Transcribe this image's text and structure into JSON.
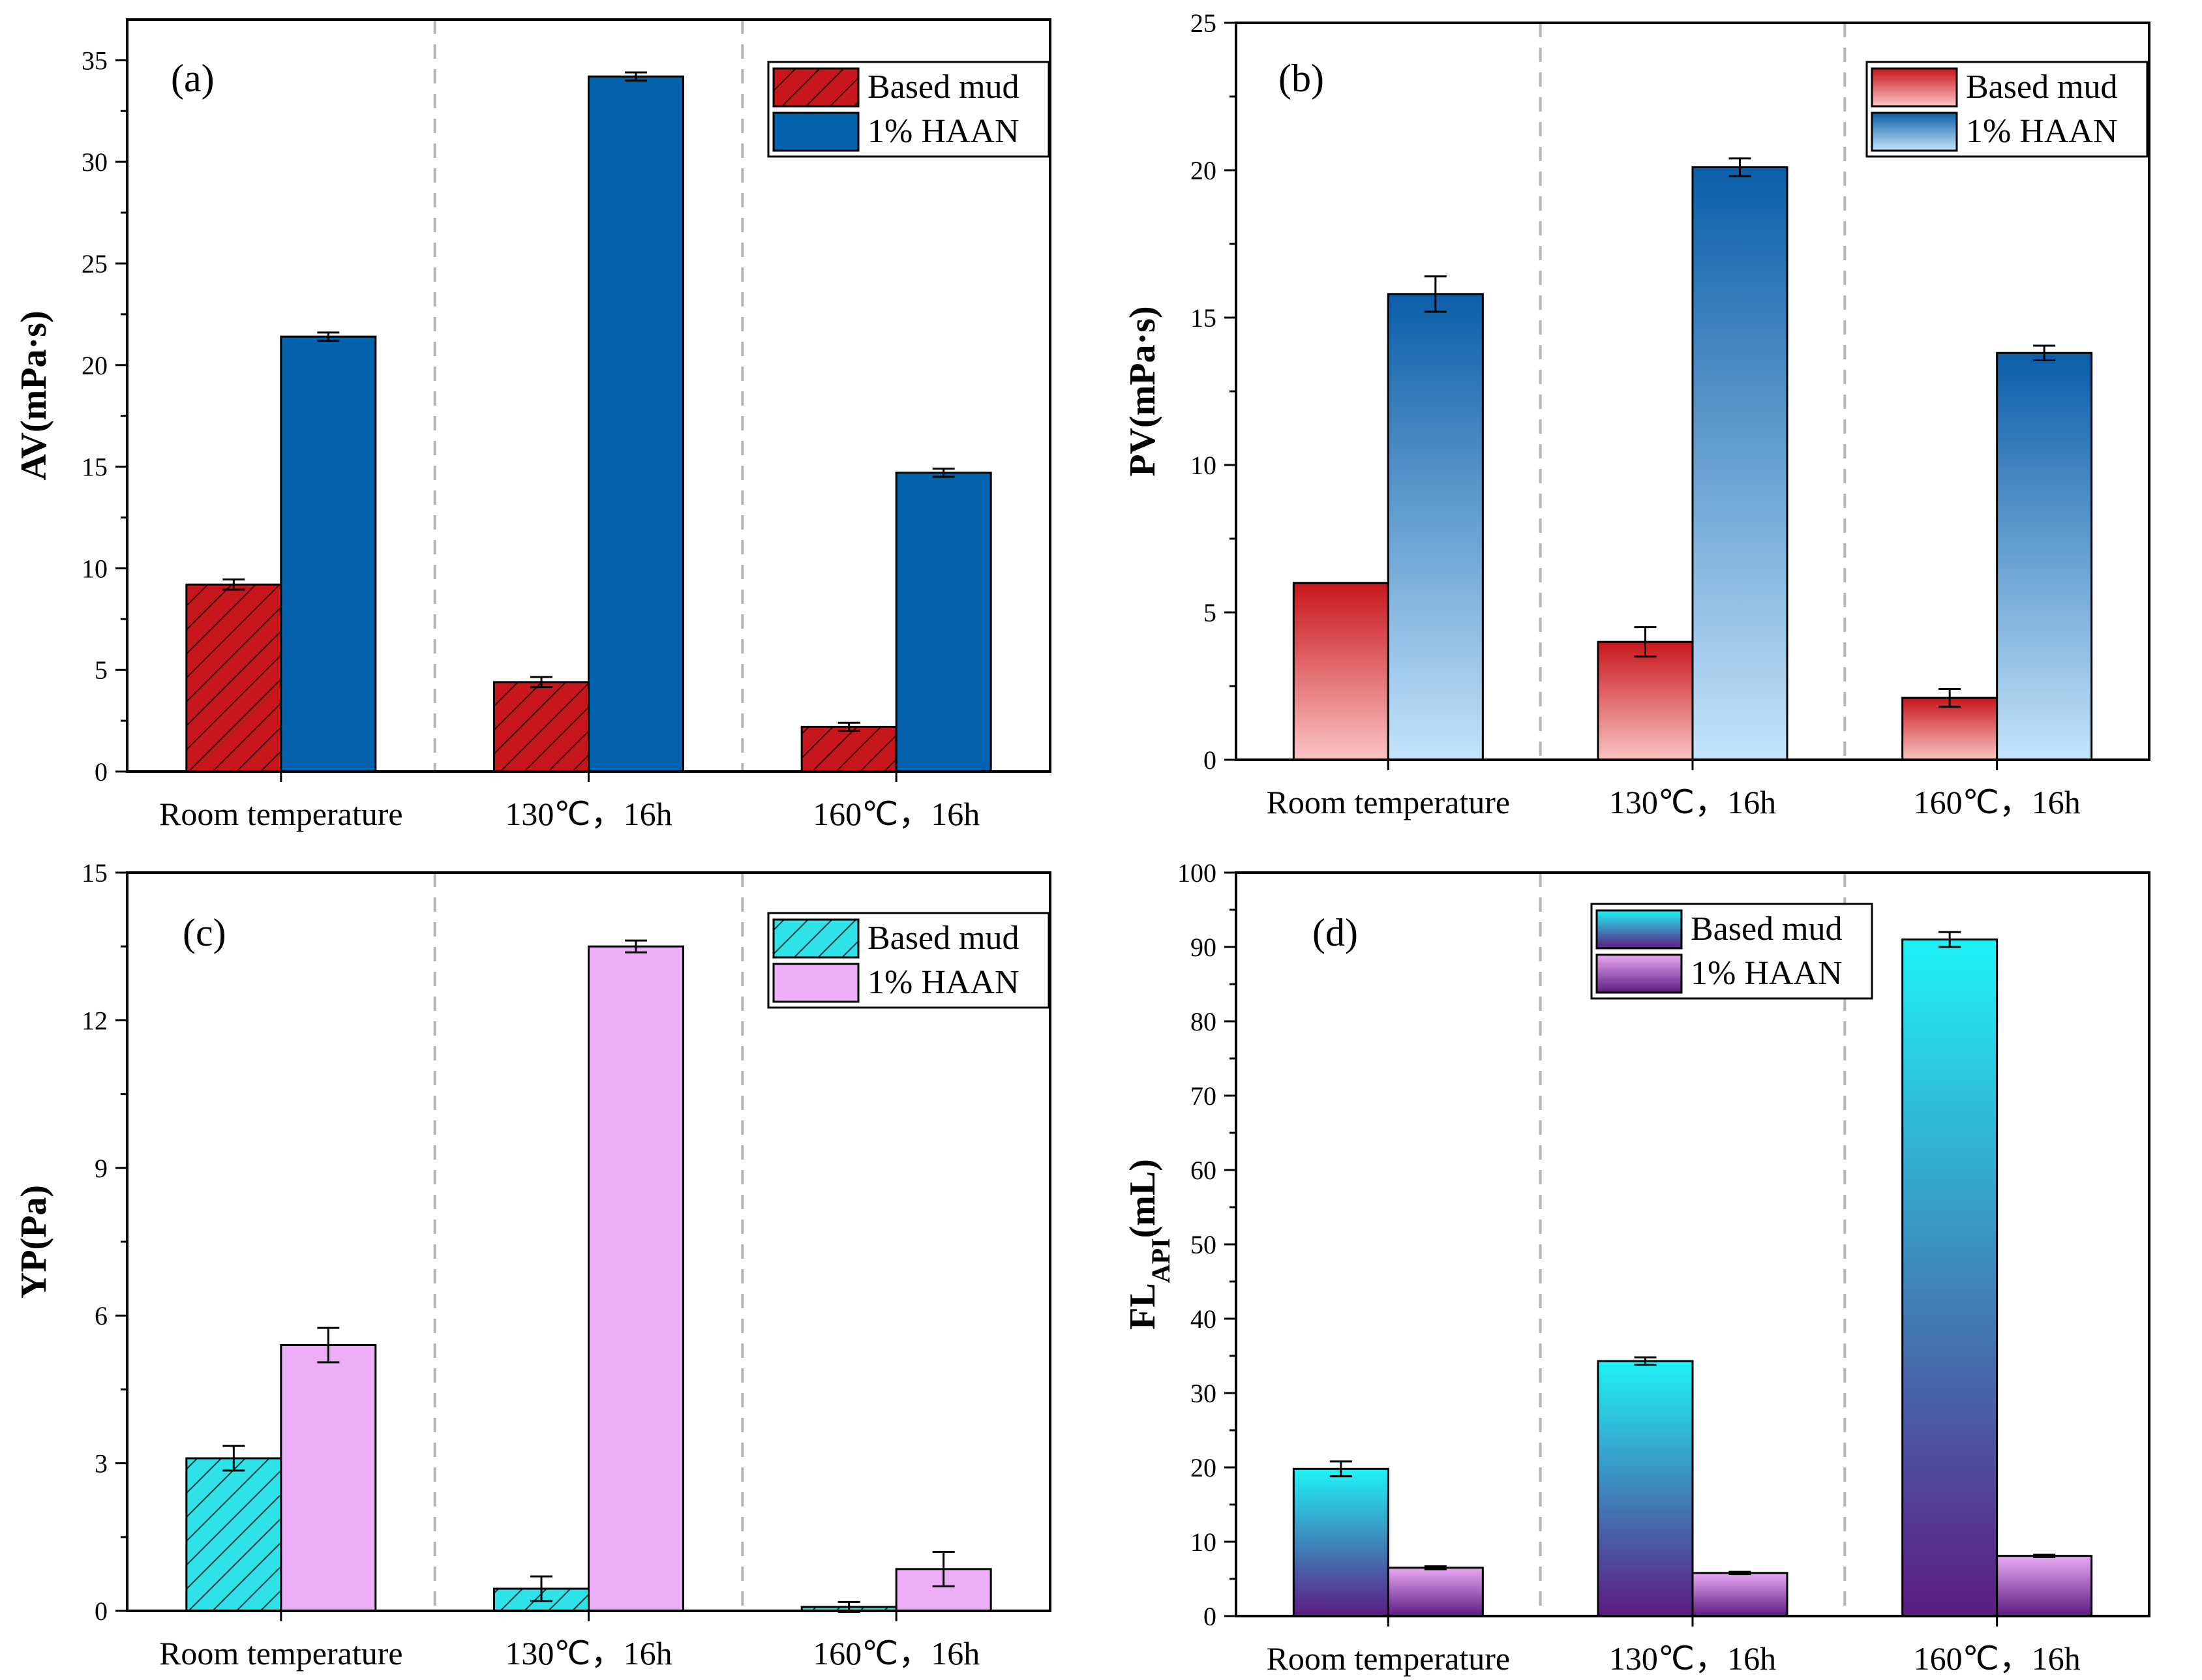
{
  "chart_data": [
    {
      "panel": "(a)",
      "type": "bar",
      "ylabel": "AV(mPa·s)",
      "ylim": [
        0,
        37
      ],
      "yticks": [
        0,
        5,
        10,
        15,
        20,
        25,
        30,
        35
      ],
      "categories": [
        "Room temperature",
        "130℃，16h",
        "160℃，16h"
      ],
      "legend": "top-right",
      "series": [
        {
          "name": "Based mud",
          "values": [
            9.2,
            4.4,
            2.2
          ],
          "errors": [
            0.25,
            0.25,
            0.2
          ],
          "color": "#c8171c",
          "fill": "hatch"
        },
        {
          "name": "1% HAAN",
          "values": [
            21.4,
            34.2,
            14.7
          ],
          "errors": [
            0.2,
            0.2,
            0.2
          ],
          "color": "#0262ab",
          "fill": "solid"
        }
      ]
    },
    {
      "panel": "(b)",
      "type": "bar",
      "ylabel": "PV(mPa·s)",
      "ylim": [
        0,
        25
      ],
      "yticks": [
        0,
        5,
        10,
        15,
        20,
        25
      ],
      "categories": [
        "Room temperature",
        "130℃，16h",
        "160℃，16h"
      ],
      "legend": "top-right",
      "series": [
        {
          "name": "Based mud",
          "values": [
            6.0,
            4.0,
            2.1
          ],
          "errors": [
            0,
            0.5,
            0.3
          ],
          "color": "#c8171c",
          "fill": "gradient",
          "gradient": [
            "#c8171c",
            "#fbc4c4"
          ]
        },
        {
          "name": "1% HAAN",
          "values": [
            15.8,
            20.1,
            13.8
          ],
          "errors": [
            0.6,
            0.3,
            0.25
          ],
          "color": "#0b5ea8",
          "fill": "gradient",
          "gradient": [
            "#0b5ea8",
            "#c4e4fb"
          ]
        }
      ]
    },
    {
      "panel": "(c)",
      "type": "bar",
      "ylabel": "YP(Pa)",
      "ylim": [
        0,
        15
      ],
      "yticks": [
        0,
        3,
        6,
        9,
        12,
        15
      ],
      "categories": [
        "Room temperature",
        "130℃，16h",
        "160℃，16h"
      ],
      "legend": "top-right",
      "series": [
        {
          "name": "Based mud",
          "values": [
            3.1,
            0.45,
            0.08
          ],
          "errors": [
            0.25,
            0.25,
            0.1
          ],
          "color": "#2fe2e8",
          "fill": "hatch"
        },
        {
          "name": "1% HAAN",
          "values": [
            5.4,
            13.5,
            0.85
          ],
          "errors": [
            0.35,
            0.12,
            0.35
          ],
          "color": "#ebaef7",
          "fill": "solid"
        }
      ]
    },
    {
      "panel": "(d)",
      "type": "bar",
      "ylabel": "FLAPI(mL)",
      "ylabel_main": "FL",
      "ylabel_sub": "API",
      "ylabel_tail": "(mL)",
      "ylim": [
        0,
        100
      ],
      "yticks": [
        0,
        10,
        20,
        30,
        40,
        50,
        60,
        70,
        80,
        90,
        100
      ],
      "categories": [
        "Room temperature",
        "130℃，16h",
        "160℃，16h"
      ],
      "legend": "top-left",
      "series": [
        {
          "name": "Based mud",
          "values": [
            19.8,
            34.3,
            91.0
          ],
          "errors": [
            1.0,
            0.5,
            1.0
          ],
          "color": "#1ff3f7",
          "fill": "gradient",
          "gradient": [
            "#1ff3f7",
            "#5d1b82"
          ]
        },
        {
          "name": "1% HAAN",
          "values": [
            6.5,
            5.8,
            8.1
          ],
          "errors": [
            0.2,
            0.15,
            0.15
          ],
          "color": "#e9a9f3",
          "fill": "gradient",
          "gradient": [
            "#e9a9f3",
            "#5d1b82"
          ]
        }
      ]
    }
  ]
}
